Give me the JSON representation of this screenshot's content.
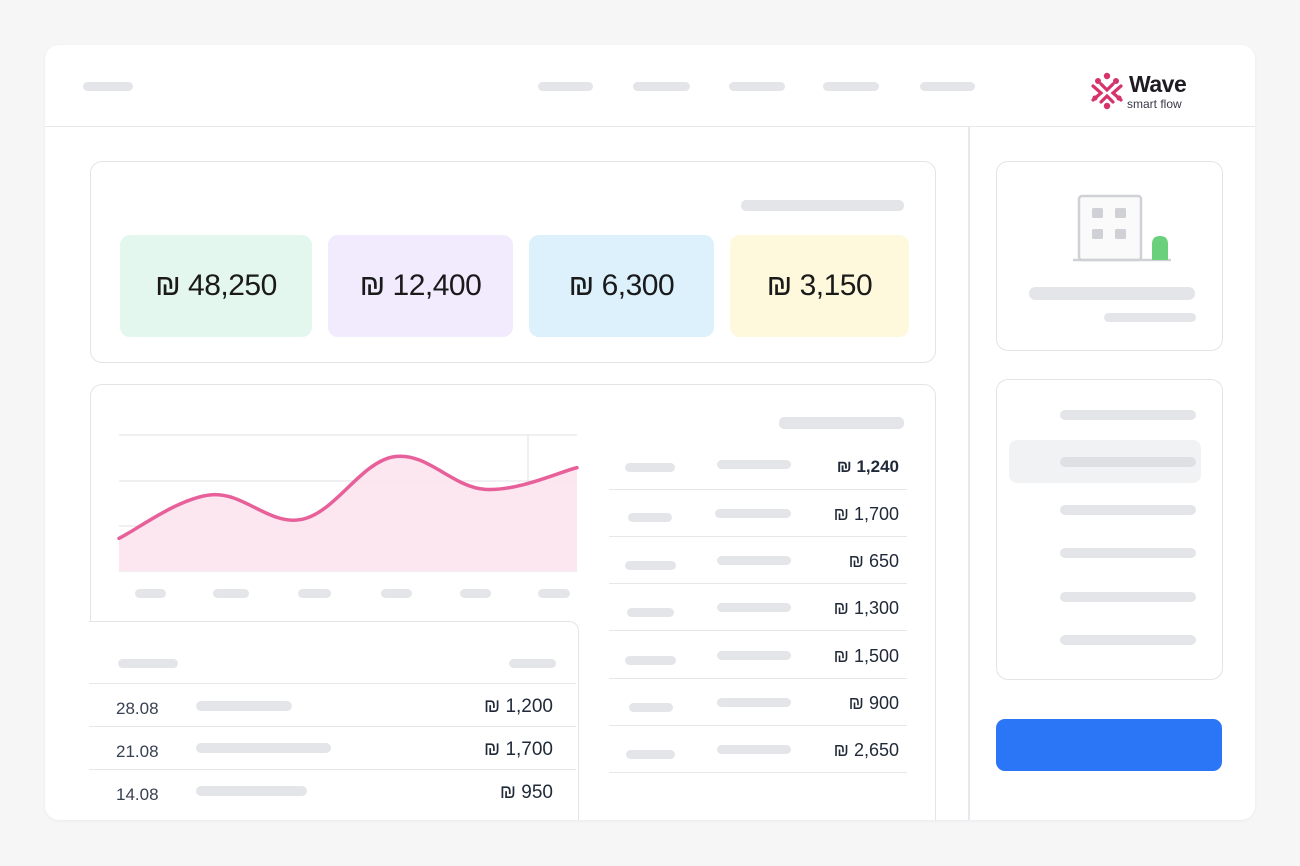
{
  "brand": {
    "name": "Wave",
    "tagline": "smart flow",
    "colors": {
      "mark": "#d6336c",
      "primary": "#2b76f6",
      "chart_line": "#e8609a",
      "status_green": "#6bd07c"
    }
  },
  "stats": [
    {
      "value": "₪ 48,250",
      "color": "#e4f7ef"
    },
    {
      "value": "₪ 12,400",
      "color": "#f1ebfd"
    },
    {
      "value": "₪ 6,300",
      "color": "#dcf1fc"
    },
    {
      "value": "₪ 3,150",
      "color": "#fef8dc"
    }
  ],
  "chart_data": {
    "type": "area",
    "x": [
      0,
      1,
      2,
      3,
      4,
      5
    ],
    "values": [
      24,
      56,
      38,
      84,
      60,
      76
    ],
    "ylim": [
      0,
      100
    ],
    "grid": true,
    "color": "#e8609a"
  },
  "amount_list": [
    {
      "amount": "₪ 1,240"
    },
    {
      "amount": "₪ 1,700"
    },
    {
      "amount": "₪ 650"
    },
    {
      "amount": "₪ 1,300"
    },
    {
      "amount": "₪ 1,500"
    },
    {
      "amount": "₪ 900"
    },
    {
      "amount": "₪ 2,650"
    }
  ],
  "transactions": [
    {
      "date": "28.08",
      "amount": "₪ 1,200"
    },
    {
      "date": "21.08",
      "amount": "₪ 1,700"
    },
    {
      "date": "14.08",
      "amount": "₪ 950"
    }
  ],
  "icons": {
    "logo": "wave-logo-icon",
    "building": "building-icon"
  }
}
